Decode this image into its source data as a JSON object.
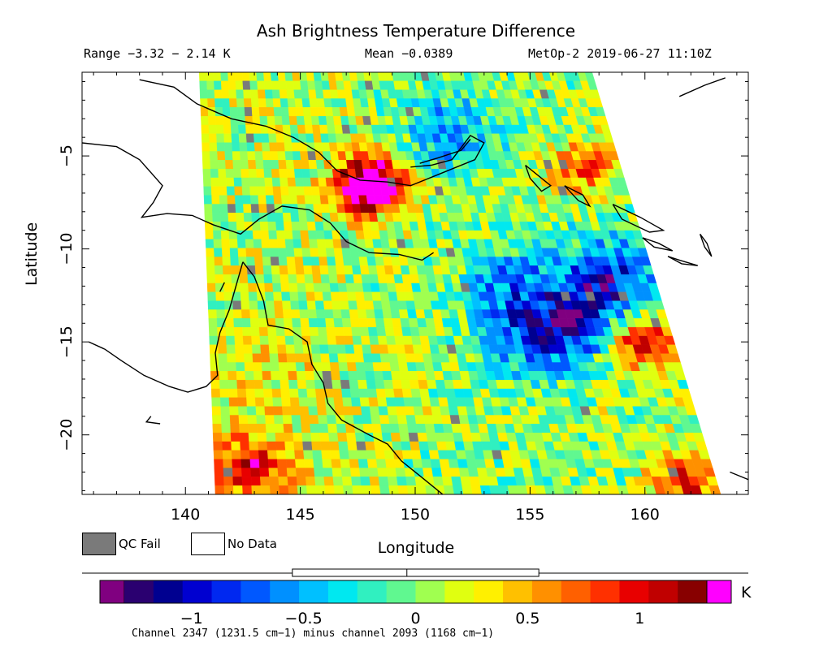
{
  "header": {
    "title": "Ash Brightness Temperature Difference",
    "range": "Range −3.32 − 2.14 K",
    "mean": "Mean −0.0389",
    "satellite": "MetOp-2 2019-06-27 11:10Z"
  },
  "chart_data": {
    "type": "heatmap",
    "title": "Ash Brightness Temperature Difference",
    "xlabel": "Longitude",
    "ylabel": "Latitude",
    "xlim": [
      135.5,
      164.5
    ],
    "ylim": [
      -23.2,
      -0.5
    ],
    "x_ticks": [
      {
        "value": 140,
        "label": "140"
      },
      {
        "value": 145,
        "label": "145"
      },
      {
        "value": 150,
        "label": "150"
      },
      {
        "value": 155,
        "label": "155"
      },
      {
        "value": 160,
        "label": "160"
      }
    ],
    "y_ticks": [
      {
        "value": -5,
        "label": "−5"
      },
      {
        "value": -10,
        "label": "−10"
      },
      {
        "value": -15,
        "label": "−15"
      },
      {
        "value": -20,
        "label": "−20"
      }
    ],
    "swath_corners": [
      [
        140.6,
        -0.5
      ],
      [
        157.7,
        -0.5
      ],
      [
        163.3,
        -23.2
      ],
      [
        141.3,
        -23.2
      ]
    ],
    "cells_per_row": 55,
    "rows": 48,
    "hotspots": [
      {
        "lon": 148.3,
        "lat": -6.3,
        "value": 1.1
      },
      {
        "lon": 147.8,
        "lat": -6.8,
        "value": 0.8
      },
      {
        "lon": 142.8,
        "lat": -21.8,
        "value": 0.9
      },
      {
        "lon": 161.8,
        "lat": -22.5,
        "value": 0.9
      },
      {
        "lon": 159.8,
        "lat": -14.9,
        "value": 1.0
      },
      {
        "lon": 157.5,
        "lat": -5.5,
        "value": 0.7
      }
    ],
    "coldspots": [
      {
        "lon": 158.5,
        "lat": -11.5,
        "value": -0.9
      },
      {
        "lon": 157.0,
        "lat": -14.0,
        "value": -0.8
      },
      {
        "lon": 155.0,
        "lat": -15.0,
        "value": -0.6
      },
      {
        "lon": 151.5,
        "lat": -3.8,
        "value": -0.6
      },
      {
        "lon": 154.0,
        "lat": -11.8,
        "value": -0.6
      }
    ],
    "colors": {
      "qc_fail": "#7a7a7a",
      "no_data": "#ffffff",
      "coastline": "#000000"
    }
  },
  "legend": {
    "qc_fail_label": "QC Fail",
    "no_data_label": "No Data"
  },
  "colorbar": {
    "min": -1.3,
    "max": 1.3,
    "ticks": [
      {
        "value": -1,
        "label": "−1"
      },
      {
        "value": -0.5,
        "label": "−0.5"
      },
      {
        "value": 0,
        "label": "0"
      },
      {
        "value": 0.5,
        "label": "0.5"
      },
      {
        "value": 1,
        "label": "1"
      }
    ],
    "unit": "K",
    "under_color": "#800080",
    "over_color": "#ff00ff",
    "colors": [
      "#2a0070",
      "#000090",
      "#0000d0",
      "#0028f0",
      "#0058ff",
      "#0090ff",
      "#00c0ff",
      "#00e8f0",
      "#30f0c0",
      "#60f890",
      "#a0ff50",
      "#e0ff10",
      "#fff000",
      "#ffc000",
      "#ff9000",
      "#ff6000",
      "#ff3000",
      "#e80000",
      "#c00000",
      "#880000"
    ],
    "histogram_box": {
      "low": -0.55,
      "high": 0.55,
      "mean": -0.0389
    }
  },
  "footer": {
    "channel_note": "Channel 2347 (1231.5 cm−1) minus channel 2093 (1168 cm−1)"
  }
}
